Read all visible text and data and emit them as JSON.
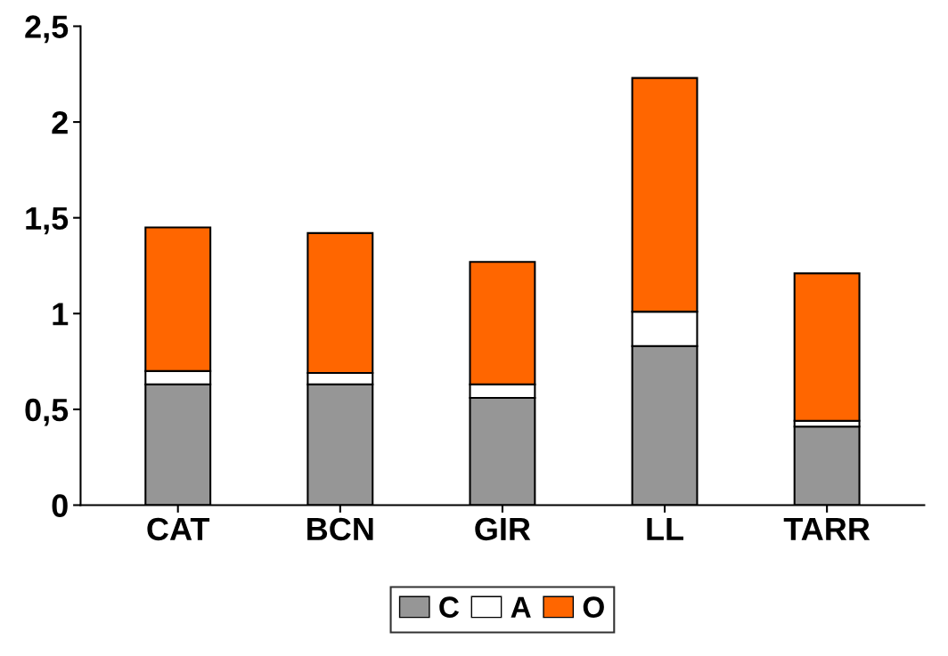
{
  "chart_data": {
    "type": "bar",
    "stacked": true,
    "categories": [
      "CAT",
      "BCN",
      "GIR",
      "LL",
      "TARR"
    ],
    "series": [
      {
        "name": "C",
        "color": "#969696",
        "values": [
          0.63,
          0.63,
          0.56,
          0.83,
          0.41
        ]
      },
      {
        "name": "A",
        "color": "#ffffff",
        "values": [
          0.07,
          0.06,
          0.07,
          0.18,
          0.03
        ]
      },
      {
        "name": "O",
        "color": "#ff6600",
        "values": [
          0.75,
          0.73,
          0.64,
          1.22,
          0.77
        ]
      }
    ],
    "ylim": [
      0,
      2.5
    ],
    "yticks": [
      0,
      {
        "value": 0.5,
        "label": "0,5"
      },
      1,
      {
        "value": 1.5,
        "label": "1,5"
      },
      2,
      {
        "value": 2.5,
        "label": "2,5"
      }
    ],
    "grid": false,
    "legend": "bottom"
  }
}
